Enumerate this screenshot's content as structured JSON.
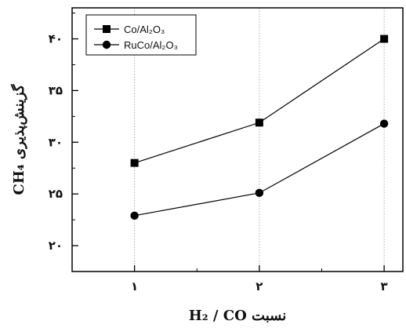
{
  "chart_data": {
    "type": "line",
    "x": [
      1,
      2,
      3
    ],
    "x_tick_labels": [
      "۱",
      "۲",
      "۳"
    ],
    "xlim": [
      0.5,
      3.15
    ],
    "ylim": [
      17.5,
      43
    ],
    "y_ticks": [
      20,
      25,
      30,
      35,
      40
    ],
    "y_tick_labels": [
      "۲۰",
      "۲۵",
      "۳۰",
      "۳۵",
      "۴۰"
    ],
    "xlabel": "نسبت H₂ / CO",
    "ylabel": "گزینش‌پذیری CH₄",
    "grid_x": true,
    "legend_position": "top-left",
    "series": [
      {
        "name": "Co/Al₂O₃",
        "marker": "square",
        "values": [
          28.0,
          31.9,
          40.0
        ]
      },
      {
        "name": "RuCo/Al₂O₃",
        "marker": "circle",
        "values": [
          22.9,
          25.1,
          31.8
        ]
      }
    ]
  }
}
